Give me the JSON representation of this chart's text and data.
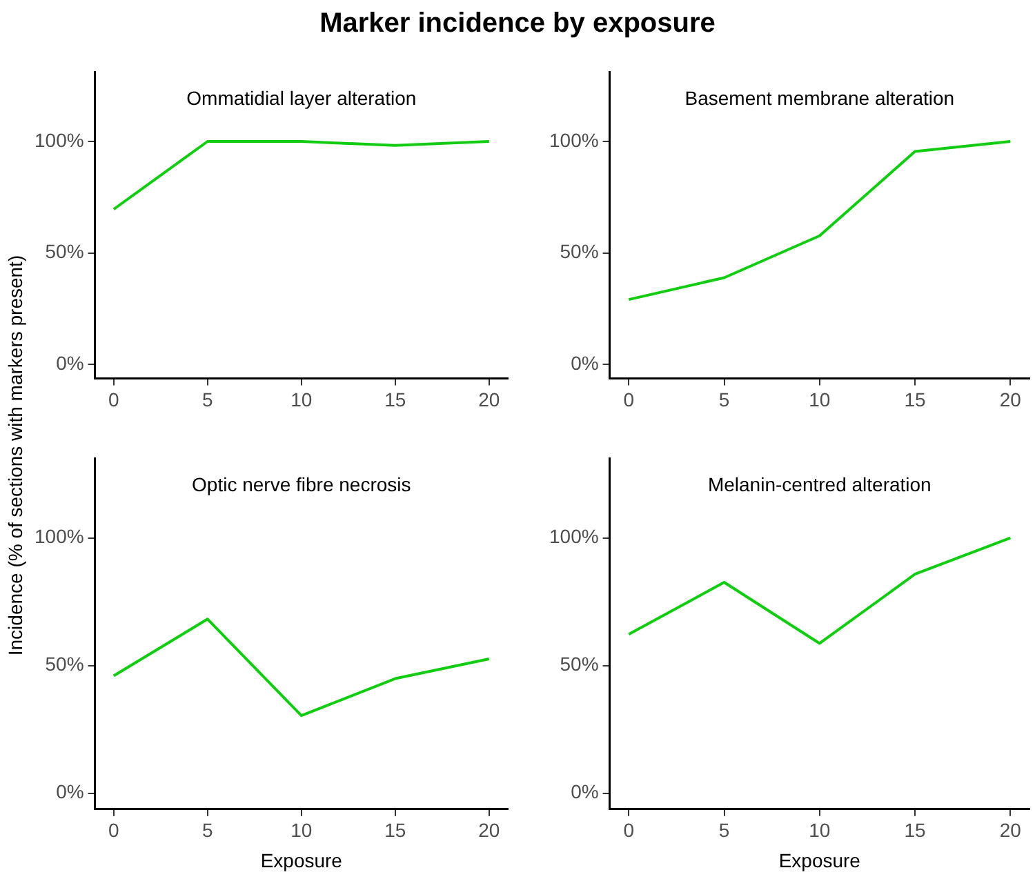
{
  "chart_data": [
    {
      "type": "line",
      "title": "Marker incidence by exposure",
      "subtitle": "Ommatidial layer alteration",
      "ylabel": "Incidence (% of sections with markers present)",
      "x": [
        0,
        5,
        10,
        15,
        20
      ],
      "series": [
        {
          "color": "#11cc11",
          "values": [
            69.6,
            100,
            100,
            98.2,
            100
          ]
        }
      ],
      "xlim": [
        -1,
        21
      ],
      "xticks": [
        0,
        5,
        10,
        15,
        20
      ],
      "ylim": [
        -6.25,
        131.25
      ],
      "yticks": [
        {
          "value": 0,
          "label": "0%"
        },
        {
          "value": 50,
          "label": "50%"
        },
        {
          "value": 100,
          "label": "100%"
        }
      ],
      "grid": false,
      "legend": false,
      "marker": "none"
    },
    {
      "type": "line",
      "subtitle": "Basement membrane alteration",
      "x": [
        0,
        5,
        10,
        15,
        20
      ],
      "series": [
        {
          "color": "#11cc11",
          "values": [
            29.1,
            38.9,
            57.7,
            95.5,
            100
          ]
        }
      ],
      "xlim": [
        -1,
        21
      ],
      "xticks": [
        0,
        5,
        10,
        15,
        20
      ],
      "ylim": [
        -6.25,
        131.25
      ],
      "yticks": [
        {
          "value": 0,
          "label": "0%"
        },
        {
          "value": 50,
          "label": "50%"
        },
        {
          "value": 100,
          "label": "100%"
        }
      ],
      "grid": false,
      "legend": false,
      "marker": "none"
    },
    {
      "type": "line",
      "subtitle": "Optic nerve fibre necrosis",
      "xlabel": "Exposure",
      "x": [
        0,
        5,
        10,
        15,
        20
      ],
      "series": [
        {
          "color": "#11cc11",
          "values": [
            46.0,
            68.2,
            30.4,
            44.9,
            52.6
          ]
        }
      ],
      "xlim": [
        -1,
        21
      ],
      "xticks": [
        0,
        5,
        10,
        15,
        20
      ],
      "ylim": [
        -6.25,
        131.25
      ],
      "yticks": [
        {
          "value": 0,
          "label": "0%"
        },
        {
          "value": 50,
          "label": "50%"
        },
        {
          "value": 100,
          "label": "100%"
        }
      ],
      "grid": false,
      "legend": false,
      "marker": "none"
    },
    {
      "type": "line",
      "subtitle": "Melanin-centred alteration",
      "xlabel": "Exposure",
      "x": [
        0,
        5,
        10,
        15,
        20
      ],
      "series": [
        {
          "color": "#11cc11",
          "values": [
            62.3,
            82.6,
            58.7,
            85.8,
            100
          ]
        }
      ],
      "xlim": [
        -1,
        21
      ],
      "xticks": [
        0,
        5,
        10,
        15,
        20
      ],
      "ylim": [
        -6.25,
        131.25
      ],
      "yticks": [
        {
          "value": 0,
          "label": "0%"
        },
        {
          "value": 50,
          "label": "50%"
        },
        {
          "value": 100,
          "label": "100%"
        }
      ],
      "grid": false,
      "legend": false,
      "marker": "none"
    }
  ]
}
